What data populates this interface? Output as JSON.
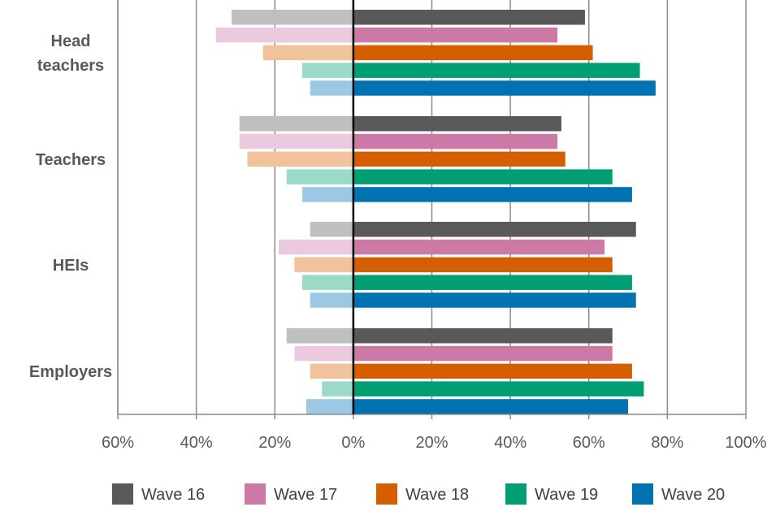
{
  "chart_data": {
    "type": "bar",
    "orientation": "horizontal",
    "diverging": true,
    "title": "",
    "xlabel": "",
    "ylabel": "",
    "xlim": [
      -60,
      100
    ],
    "x_ticks": [
      -60,
      -40,
      -20,
      0,
      20,
      40,
      60,
      80,
      100
    ],
    "x_tick_labels": [
      "60%",
      "40%",
      "20%",
      "0%",
      "20%",
      "40%",
      "60%",
      "80%",
      "100%"
    ],
    "grid": true,
    "legend_position": "bottom",
    "categories": [
      {
        "lines": [
          "Head",
          "teachers"
        ]
      },
      {
        "lines": [
          "Teachers"
        ]
      },
      {
        "lines": [
          "HEIs"
        ]
      },
      {
        "lines": [
          "Employers"
        ]
      }
    ],
    "series": [
      {
        "name": "Wave 16",
        "color": "#595959",
        "light_color": "#bfbfbf",
        "negative": [
          -31,
          -29,
          -11,
          -17
        ],
        "positive": [
          59,
          53,
          72,
          66
        ]
      },
      {
        "name": "Wave 17",
        "color": "#cc79a7",
        "light_color": "#ebc9df",
        "negative": [
          -35,
          -29,
          -19,
          -15
        ],
        "positive": [
          52,
          52,
          64,
          66
        ]
      },
      {
        "name": "Wave 18",
        "color": "#d55e00",
        "light_color": "#f0c39c",
        "negative": [
          -23,
          -27,
          -15,
          -11
        ],
        "positive": [
          61,
          54,
          66,
          71
        ]
      },
      {
        "name": "Wave 19",
        "color": "#009e73",
        "light_color": "#9cdac8",
        "negative": [
          -13,
          -17,
          -13,
          -8
        ],
        "positive": [
          73,
          66,
          71,
          74
        ]
      },
      {
        "name": "Wave 20",
        "color": "#0072b2",
        "light_color": "#9cc8e3",
        "negative": [
          -11,
          -13,
          -11,
          -12
        ],
        "positive": [
          77,
          71,
          72,
          70
        ]
      }
    ]
  }
}
